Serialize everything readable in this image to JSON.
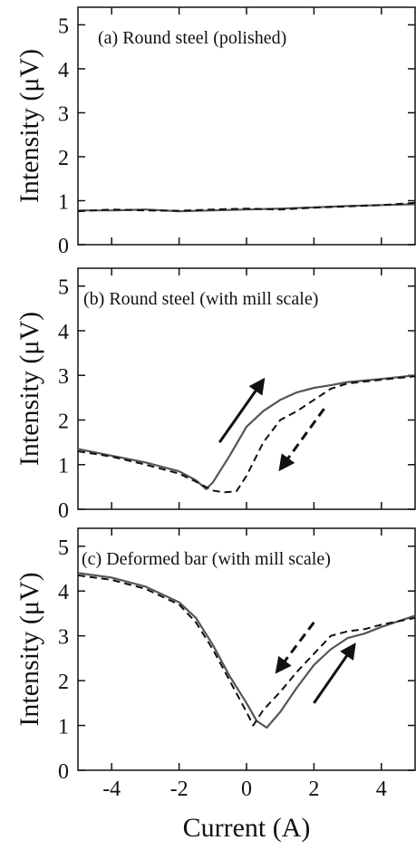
{
  "figure": {
    "xlabel": "Current (A)"
  },
  "chart_data": [
    {
      "type": "line",
      "title": "(a) Round steel (polished)",
      "ylabel": "Intensity (μV)",
      "xlim": [
        -5,
        5
      ],
      "ylim": [
        0,
        5.4
      ],
      "x_ticks": [
        -4,
        -2,
        0,
        2,
        4
      ],
      "y_ticks": [
        0,
        1,
        2,
        3,
        4,
        5
      ],
      "x_tick_labels": [
        "-4",
        "-2",
        "0",
        "2",
        "4"
      ],
      "y_tick_labels": [
        "0",
        "1",
        "2",
        "3",
        "4",
        "5"
      ],
      "series": [
        {
          "style": "solid",
          "color": "#555555",
          "x": [
            -5,
            -4,
            -3,
            -2,
            -1,
            0,
            1,
            2,
            3,
            4,
            5
          ],
          "y": [
            0.78,
            0.78,
            0.8,
            0.76,
            0.78,
            0.8,
            0.82,
            0.85,
            0.88,
            0.9,
            0.92
          ]
        },
        {
          "style": "dashed",
          "color": "#111111",
          "x": [
            -5,
            -4,
            -3,
            -2,
            -1,
            0,
            1,
            2,
            3,
            4,
            5
          ],
          "y": [
            0.76,
            0.8,
            0.78,
            0.77,
            0.8,
            0.82,
            0.8,
            0.84,
            0.87,
            0.9,
            0.95
          ]
        }
      ],
      "arrows": []
    },
    {
      "type": "line",
      "title": "(b) Round steel (with mill scale)",
      "ylabel": "Intensity (μV)",
      "xlim": [
        -5,
        5
      ],
      "ylim": [
        0,
        5.4
      ],
      "x_ticks": [
        -4,
        -2,
        0,
        2,
        4
      ],
      "y_ticks": [
        0,
        1,
        2,
        3,
        4,
        5
      ],
      "x_tick_labels": [
        "-4",
        "-2",
        "0",
        "2",
        "4"
      ],
      "y_tick_labels": [
        "0",
        "1",
        "2",
        "3",
        "4",
        "5"
      ],
      "series": [
        {
          "style": "solid",
          "color": "#555555",
          "x": [
            -5,
            -4,
            -3,
            -2,
            -1.5,
            -1.2,
            -1.0,
            -0.5,
            0,
            0.5,
            1,
            1.5,
            2,
            2.5,
            3,
            4,
            5
          ],
          "y": [
            1.35,
            1.2,
            1.05,
            0.85,
            0.65,
            0.45,
            0.6,
            1.2,
            1.85,
            2.2,
            2.45,
            2.62,
            2.72,
            2.78,
            2.85,
            2.92,
            3.0
          ]
        },
        {
          "style": "dashed",
          "color": "#111111",
          "x": [
            -5,
            -4,
            -3,
            -2,
            -1.5,
            -1.0,
            -0.7,
            -0.3,
            0,
            0.5,
            1,
            1.5,
            2,
            2.5,
            3,
            4,
            5
          ],
          "y": [
            1.3,
            1.18,
            1.0,
            0.8,
            0.62,
            0.42,
            0.38,
            0.4,
            0.75,
            1.5,
            2.0,
            2.2,
            2.45,
            2.7,
            2.82,
            2.9,
            2.98
          ]
        }
      ],
      "arrows": [
        {
          "style": "solid",
          "from": [
            -0.8,
            1.5
          ],
          "to": [
            0.5,
            2.9
          ]
        },
        {
          "style": "dashed",
          "from": [
            2.3,
            2.25
          ],
          "to": [
            1.0,
            0.9
          ]
        }
      ]
    },
    {
      "type": "line",
      "title": "(c) Deformed bar (with mill scale)",
      "ylabel": "Intensity (μV)",
      "xlim": [
        -5,
        5
      ],
      "ylim": [
        0,
        5.4
      ],
      "x_ticks": [
        -4,
        -2,
        0,
        2,
        4
      ],
      "y_ticks": [
        0,
        1,
        2,
        3,
        4,
        5
      ],
      "x_tick_labels": [
        "-4",
        "-2",
        "0",
        "2",
        "4"
      ],
      "y_tick_labels": [
        "0",
        "1",
        "2",
        "3",
        "4",
        "5"
      ],
      "series": [
        {
          "style": "solid",
          "color": "#555555",
          "x": [
            -5,
            -4,
            -3,
            -2,
            -1.5,
            -1,
            -0.5,
            0,
            0.3,
            0.6,
            1,
            1.5,
            2,
            2.5,
            3,
            3.5,
            4,
            5
          ],
          "y": [
            4.4,
            4.3,
            4.1,
            3.75,
            3.4,
            2.8,
            2.1,
            1.5,
            1.1,
            0.95,
            1.3,
            1.85,
            2.35,
            2.7,
            2.95,
            3.05,
            3.2,
            3.45
          ]
        },
        {
          "style": "dashed",
          "color": "#111111",
          "x": [
            -5,
            -4,
            -3,
            -2,
            -1.5,
            -1,
            -0.5,
            0,
            0.2,
            0.5,
            1,
            1.5,
            2,
            2.5,
            3,
            3.5,
            4,
            5
          ],
          "y": [
            4.35,
            4.25,
            4.05,
            3.7,
            3.3,
            2.7,
            2.0,
            1.3,
            1.0,
            1.35,
            1.75,
            2.2,
            2.6,
            3.0,
            3.1,
            3.15,
            3.25,
            3.4
          ]
        }
      ],
      "arrows": [
        {
          "style": "dashed",
          "from": [
            2.0,
            3.3
          ],
          "to": [
            0.9,
            2.2
          ]
        },
        {
          "style": "solid",
          "from": [
            2.0,
            1.5
          ],
          "to": [
            3.2,
            2.8
          ]
        }
      ]
    }
  ]
}
